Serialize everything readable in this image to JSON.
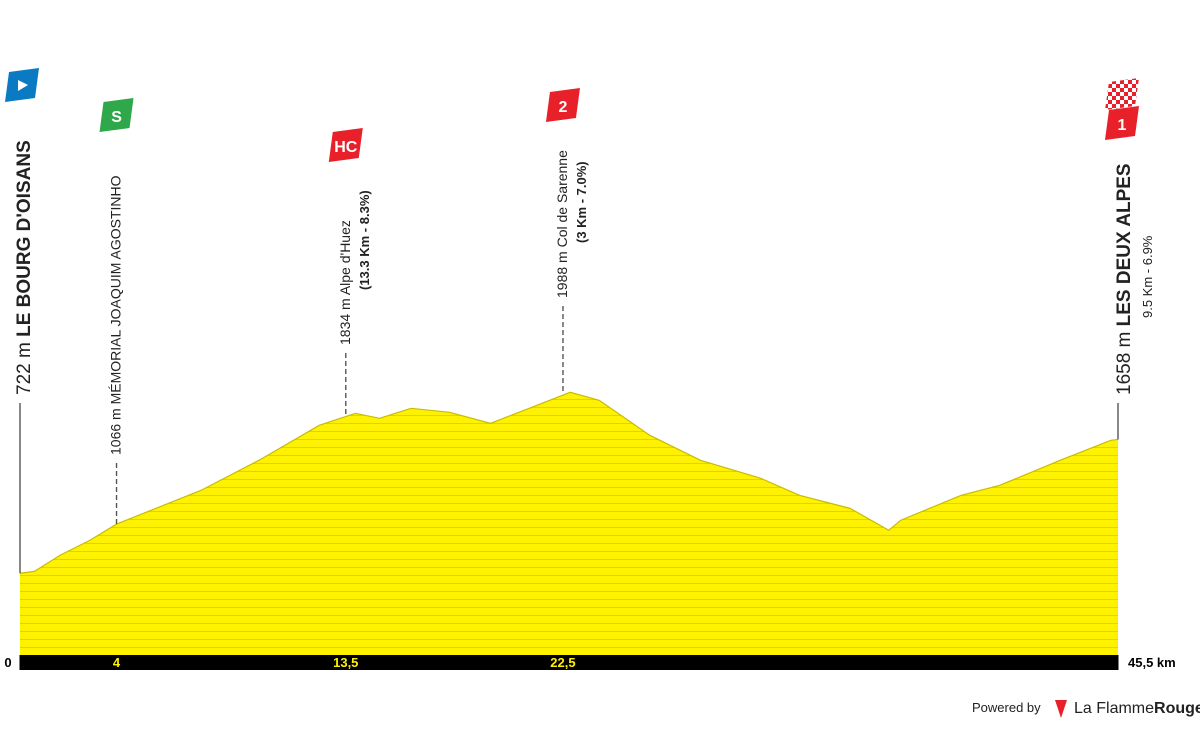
{
  "chart_data": {
    "type": "area",
    "color": "#fff200",
    "x": [
      0,
      0.6,
      1.66,
      2.9,
      4.0,
      7.5,
      9.9,
      12.4,
      13.9,
      14.9,
      16.2,
      17.8,
      19.5,
      21.1,
      22.8,
      24.0,
      26.1,
      28.2,
      30.7,
      32.3,
      34.4,
      36.0,
      36.5,
      39.0,
      40.6,
      43.1,
      45.2,
      45.5
    ],
    "values": [
      722,
      735,
      848,
      953,
      1066,
      1302,
      1512,
      1757,
      1841,
      1806,
      1876,
      1848,
      1771,
      1876,
      1988,
      1932,
      1687,
      1512,
      1386,
      1267,
      1176,
      1023,
      1093,
      1267,
      1337,
      1512,
      1652,
      1658
    ],
    "xlim": [
      0,
      45.5
    ],
    "ylim": [
      150,
      2200
    ],
    "xticks": [
      0,
      4,
      {
        "value": 13.5,
        "label": "13,5"
      },
      {
        "value": 22.5,
        "label": "22,5"
      },
      {
        "value": 45.5,
        "label": "45,5 km"
      }
    ],
    "markers": [
      {
        "km": 0,
        "elevation": 722,
        "elevation_label": "722 m",
        "name": "LE BOURG D'OISANS",
        "badge_color": "#0a7bc2"
      },
      {
        "km": 4,
        "elevation": 1066,
        "elevation_label": "1066 m",
        "name": "MÉMORIAL JOAQUIM AGOSTINHO",
        "badge": "S",
        "badge_color": "#2ea84a"
      },
      {
        "km": 13.5,
        "elevation": 1834,
        "elevation_label": "1834 m",
        "name": "Alpe d'Huez",
        "detail": "(13.3 Km - 8.3%)",
        "badge": "HC",
        "badge_color": "#e8202a"
      },
      {
        "km": 22.5,
        "elevation": 1988,
        "elevation_label": "1988 m",
        "name": "Col de Sarenne",
        "detail": "(3 Km - 7.0%)",
        "badge": "2",
        "badge_color": "#e8202a"
      },
      {
        "km": 45.5,
        "elevation": 1658,
        "elevation_label": "1658 m",
        "name": "LES DEUX ALPES",
        "detail": "9.5 Km - 6.9%",
        "badge": "1",
        "badge_color": "#e8202a"
      }
    ]
  },
  "footer": {
    "powered": "Powered by",
    "brand1": "La Flamme",
    "brand2": "Rouge"
  }
}
